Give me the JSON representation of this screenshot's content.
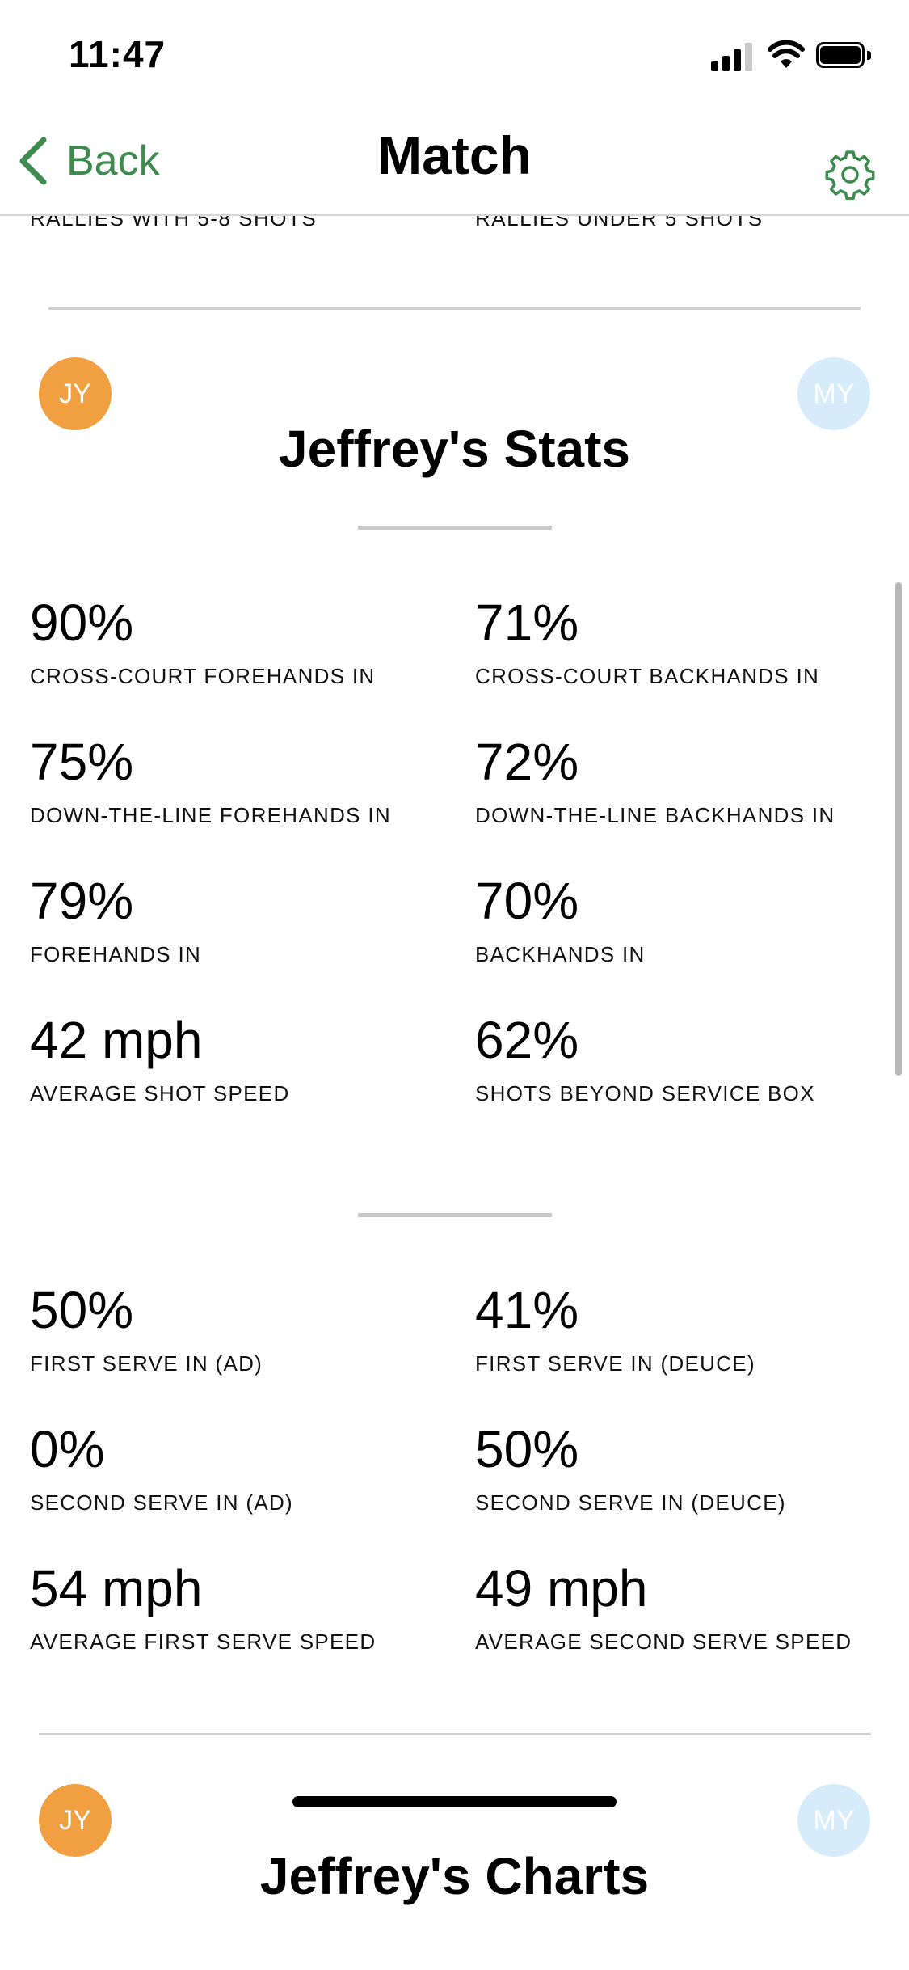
{
  "status": {
    "time": "11:47"
  },
  "nav": {
    "back_label": "Back",
    "title": "Match"
  },
  "cut_off_labels": [
    "RALLIES WITH 5-8 SHOTS",
    "RALLIES UNDER 5 SHOTS"
  ],
  "stats_section": {
    "left_avatar": "JY",
    "right_avatar": "MY",
    "title": "Jeffrey's Stats"
  },
  "shot_stats": [
    {
      "value": "90%",
      "label": "CROSS-COURT FOREHANDS IN"
    },
    {
      "value": "71%",
      "label": "CROSS-COURT BACKHANDS IN"
    },
    {
      "value": "75%",
      "label": "DOWN-THE-LINE FOREHANDS IN"
    },
    {
      "value": "72%",
      "label": "DOWN-THE-LINE BACKHANDS IN"
    },
    {
      "value": "79%",
      "label": "FOREHANDS IN"
    },
    {
      "value": "70%",
      "label": "BACKHANDS IN"
    },
    {
      "value": "42 mph",
      "label": "AVERAGE SHOT SPEED"
    },
    {
      "value": "62%",
      "label": "SHOTS BEYOND SERVICE BOX"
    }
  ],
  "serve_stats": [
    {
      "value": "50%",
      "label": "FIRST SERVE IN (AD)"
    },
    {
      "value": "41%",
      "label": "FIRST SERVE IN (DEUCE)"
    },
    {
      "value": "0%",
      "label": "SECOND SERVE IN (AD)"
    },
    {
      "value": "50%",
      "label": "SECOND SERVE IN (DEUCE)"
    },
    {
      "value": "54 mph",
      "label": "AVERAGE FIRST SERVE SPEED"
    },
    {
      "value": "49 mph",
      "label": "AVERAGE SECOND SERVE SPEED"
    }
  ],
  "charts_section": {
    "left_avatar": "JY",
    "right_avatar": "MY",
    "title": "Jeffrey's Charts"
  },
  "colors": {
    "accent_green": "#3d8b4e",
    "avatar_orange": "#f0a040",
    "avatar_light_blue": "#d6ecfb"
  }
}
